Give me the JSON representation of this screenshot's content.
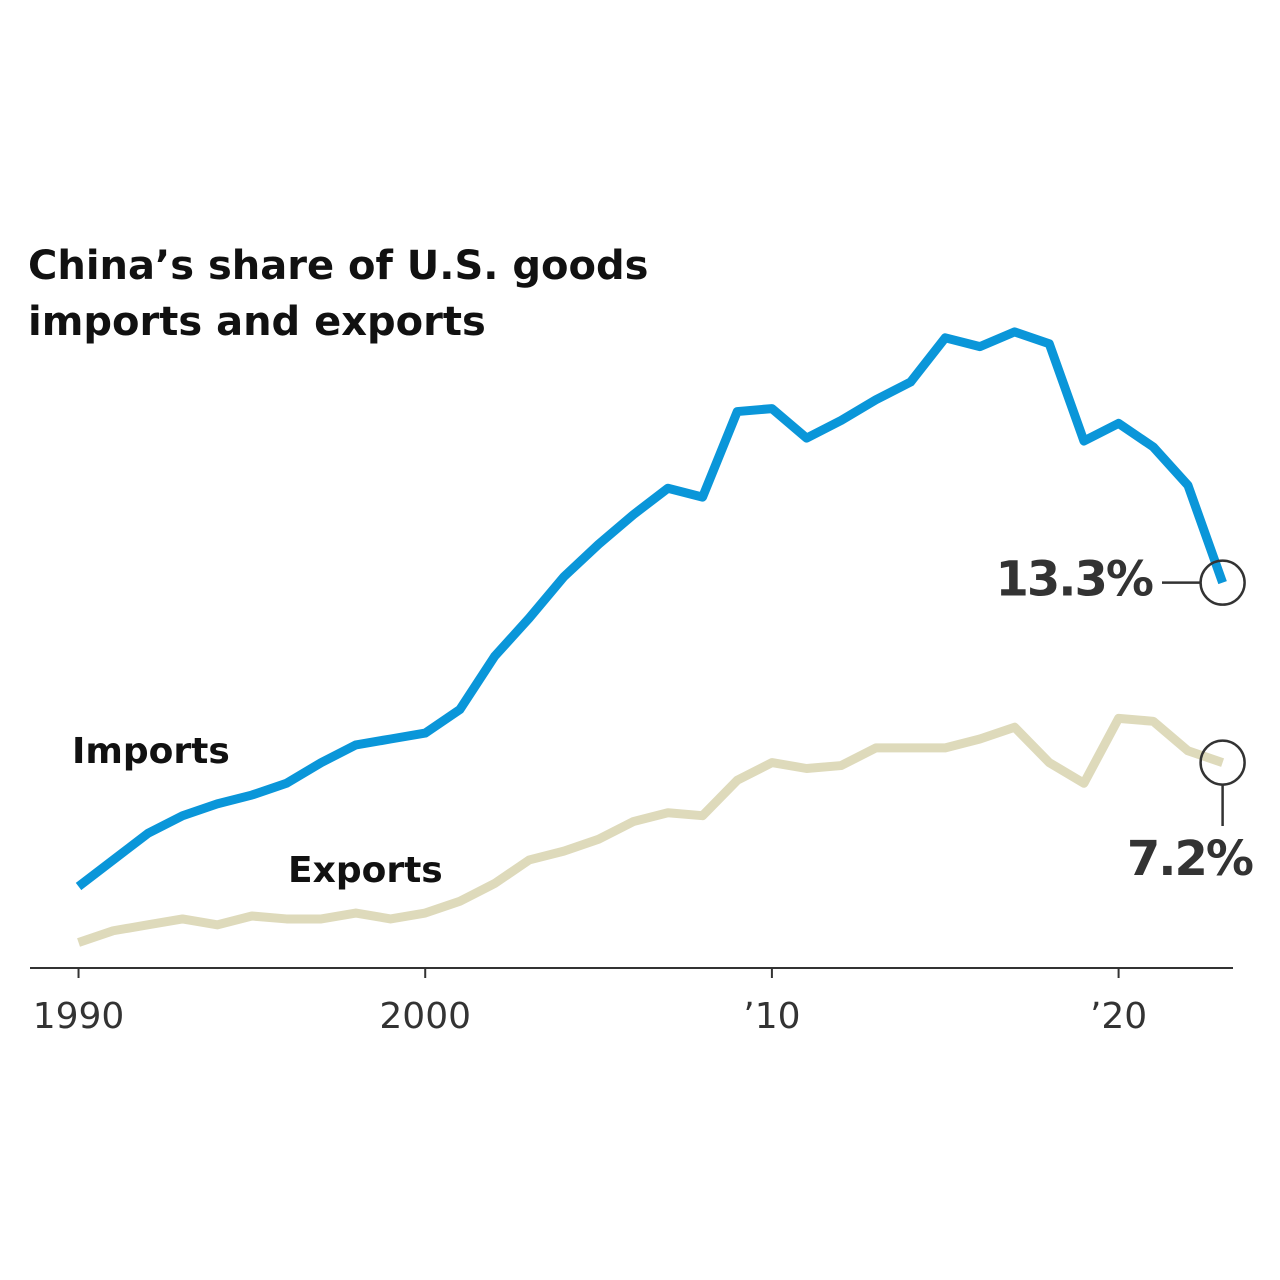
{
  "chart_data": {
    "type": "line",
    "title": "China’s share of U.S. goods imports and exports",
    "x": [
      1990,
      1991,
      1992,
      1993,
      1994,
      1995,
      1996,
      1997,
      1998,
      1999,
      2000,
      2001,
      2002,
      2003,
      2004,
      2005,
      2006,
      2007,
      2008,
      2009,
      2010,
      2011,
      2012,
      2013,
      2014,
      2015,
      2016,
      2017,
      2018,
      2019,
      2020,
      2021,
      2022,
      2023
    ],
    "series": [
      {
        "name": "Imports",
        "color": "#0a96d9",
        "values": [
          3.0,
          3.9,
          4.8,
          5.4,
          5.8,
          6.1,
          6.5,
          7.2,
          7.8,
          8.0,
          8.2,
          9.0,
          10.8,
          12.1,
          13.5,
          14.6,
          15.6,
          16.5,
          16.2,
          19.1,
          19.2,
          18.2,
          18.8,
          19.5,
          20.1,
          21.6,
          21.3,
          21.8,
          21.4,
          18.1,
          18.7,
          17.9,
          16.6,
          13.3
        ]
      },
      {
        "name": "Exports",
        "color": "#dedabb",
        "values": [
          1.1,
          1.5,
          1.7,
          1.9,
          1.7,
          2.0,
          1.9,
          1.9,
          2.1,
          1.9,
          2.1,
          2.5,
          3.1,
          3.9,
          4.2,
          4.6,
          5.2,
          5.5,
          5.4,
          6.6,
          7.2,
          7.0,
          7.1,
          7.7,
          7.7,
          7.7,
          8.0,
          8.4,
          7.2,
          6.5,
          8.7,
          8.6,
          7.6,
          7.2
        ]
      }
    ],
    "annotations": [
      "13.3%",
      "7.2%"
    ],
    "xlim": [
      1988.6,
      2023.3
    ],
    "xticks": [
      1990,
      2000,
      {
        "value": 2010,
        "label": "’10"
      },
      {
        "value": 2020,
        "label": "’20"
      }
    ],
    "ylim": [
      0,
      30
    ],
    "grid": false
  }
}
